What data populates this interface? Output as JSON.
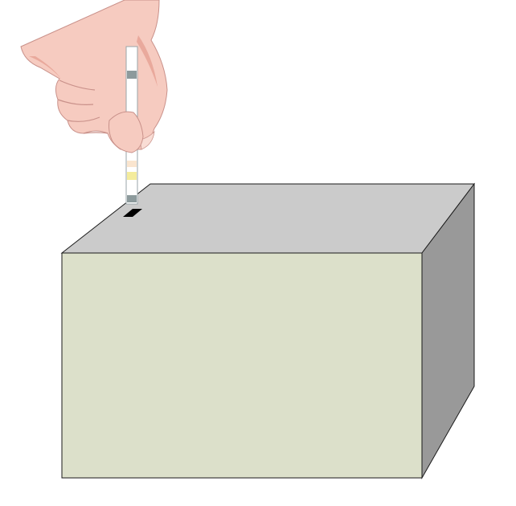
{
  "colors": {
    "background": "#ffffff",
    "box_front": "#dce0ca",
    "box_top": "#cbcbcb",
    "box_side": "#999999",
    "box_outline": "#1a1a1a",
    "slot": "#000000",
    "skin": "#f6cbc0",
    "skin_shadow": "#e9a99c",
    "skin_outline": "#c9918a",
    "strip": "#ffffff",
    "strip_pad_gray": "#8c9a9c",
    "strip_pad_peach": "#fae5cf",
    "strip_pad_yellow": "#f4ec9c"
  },
  "icons": {
    "hand": "hand-holding-test-strip-icon",
    "strip": "test-strip-icon",
    "box": "analyzer-box-icon",
    "slot": "insertion-slot-icon"
  }
}
